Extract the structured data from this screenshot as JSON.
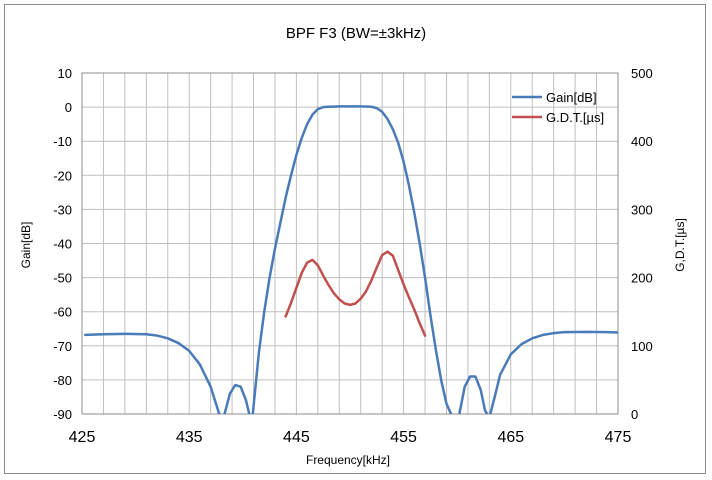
{
  "chart_data": {
    "type": "line",
    "title": "BPF F3 (BW=±3kHz)",
    "xlabel": "Frequency[kHz]",
    "ylabel": "Gain[dB]",
    "y2label": "G,D.T.[µs]",
    "xlim": [
      425,
      475
    ],
    "ylim": [
      -90,
      10
    ],
    "y2lim": [
      0,
      500
    ],
    "xticks": [
      "425",
      "435",
      "445",
      "455",
      "465",
      "475"
    ],
    "yticks": [
      "10",
      "0",
      "-10",
      "-20",
      "-30",
      "-40",
      "-50",
      "-60",
      "-70",
      "-80",
      "-90"
    ],
    "y2ticks": [
      "500",
      "400",
      "300",
      "200",
      "100",
      "0"
    ],
    "grid": true,
    "legend_position": "top-right",
    "series": [
      {
        "name": "Gain[dB]",
        "axis": "left",
        "color": "#4a7ab8",
        "x": [
          425.3,
          427,
          429,
          431,
          432,
          433,
          434,
          435,
          436,
          437,
          437.5,
          437.9,
          438.3,
          438.8,
          439.3,
          439.8,
          440.3,
          440.6,
          440.9,
          441.5,
          442,
          442.5,
          443,
          443.5,
          444,
          444.5,
          445,
          445.5,
          446,
          446.5,
          447,
          447.5,
          448,
          448.5,
          449,
          450,
          451,
          452,
          452.5,
          453,
          453.5,
          454,
          454.5,
          455,
          455.5,
          456,
          456.5,
          457,
          457.5,
          458,
          458.5,
          459,
          459.5,
          459.8,
          460.2,
          460.7,
          461.2,
          461.7,
          462.2,
          462.6,
          463.0,
          463.5,
          464,
          465,
          466,
          467,
          468,
          469,
          470,
          472,
          474,
          475
        ],
        "values": [
          -66.8,
          -66.6,
          -66.5,
          -66.6,
          -67,
          -67.8,
          -69.2,
          -71.5,
          -75.5,
          -82,
          -87,
          -91,
          -90,
          -84,
          -81.5,
          -82,
          -86,
          -90,
          -91,
          -72,
          -60,
          -50,
          -41.5,
          -34,
          -26.5,
          -20,
          -14,
          -9,
          -5,
          -2.2,
          -0.6,
          0,
          0.1,
          0.15,
          0.2,
          0.2,
          0.2,
          0.1,
          -0.3,
          -1.4,
          -3.5,
          -6.5,
          -10.5,
          -16,
          -23,
          -31,
          -40,
          -50,
          -61,
          -71,
          -80,
          -87,
          -90.5,
          -91,
          -90,
          -82,
          -79,
          -79,
          -83,
          -89,
          -91,
          -85,
          -78.5,
          -72.5,
          -69.5,
          -67.8,
          -66.8,
          -66.3,
          -66,
          -65.9,
          -66,
          -66.1
        ]
      },
      {
        "name": "G.D.T.[µs]",
        "axis": "right",
        "color": "#c0504d",
        "x": [
          444,
          444.5,
          445,
          445.5,
          446,
          446.5,
          447,
          447.5,
          448,
          448.5,
          449,
          449.5,
          450,
          450.5,
          451,
          451.5,
          452,
          452.5,
          453,
          453.5,
          454,
          454.5,
          455,
          455.5,
          456,
          456.5,
          457
        ],
        "values": [
          143,
          163,
          185,
          207,
          222,
          226,
          218,
          203,
          189,
          177,
          168,
          162,
          160,
          162,
          169,
          180,
          196,
          215,
          233,
          238,
          232,
          211,
          190,
          171,
          153,
          133,
          115
        ]
      }
    ]
  }
}
